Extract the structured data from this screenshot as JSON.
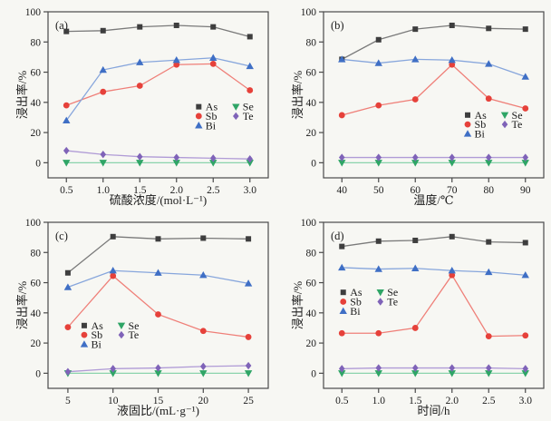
{
  "figure": {
    "background": "#f7f7f3",
    "frame_color": "#4a4a4a",
    "text_color": "#1b1b1b"
  },
  "chart_data": [
    {
      "panel": "(a)",
      "type": "line",
      "xlabel": "硫酸浓度/(mol·L⁻¹)",
      "ylabel": "浸出率/%",
      "x": [
        0.5,
        1.0,
        1.5,
        2.0,
        2.5,
        3.0
      ],
      "xtick_labels": [
        "0.5",
        "1.0",
        "1.5",
        "2.0",
        "2.5",
        "3.0"
      ],
      "xlim": [
        0.25,
        3.25
      ],
      "ylim": [
        -10,
        100
      ],
      "yticks": [
        0,
        20,
        40,
        60,
        80,
        100
      ],
      "grid": false,
      "legend_pos": {
        "fx": 0.67,
        "fy": 0.55
      },
      "series": [
        {
          "name": "As",
          "marker": "square",
          "marker_color": "#3e3e3e",
          "line_color": "#7a7a7a",
          "values": [
            87,
            87.5,
            90,
            91,
            90,
            83.5
          ]
        },
        {
          "name": "Sb",
          "marker": "circle",
          "marker_color": "#e6413a",
          "line_color": "#ef7f78",
          "values": [
            38,
            47,
            51,
            65,
            65.5,
            48
          ]
        },
        {
          "name": "Bi",
          "marker": "triangle-up",
          "marker_color": "#3f6fc5",
          "line_color": "#87a6dc",
          "values": [
            28,
            61.5,
            66.5,
            68,
            69.5,
            64
          ]
        },
        {
          "name": "Se",
          "marker": "triangle-down",
          "marker_color": "#2fa566",
          "line_color": "#8ad3ac",
          "values": [
            0,
            0,
            0,
            0,
            0,
            0
          ]
        },
        {
          "name": "Te",
          "marker": "diamond",
          "marker_color": "#7f63b8",
          "line_color": "#b09bd6",
          "values": [
            8,
            5.5,
            4,
            3.5,
            3,
            2.5
          ]
        }
      ]
    },
    {
      "panel": "(b)",
      "type": "line",
      "xlabel": "温度/℃",
      "ylabel": "浸出率/%",
      "x": [
        40,
        50,
        60,
        70,
        80,
        90
      ],
      "xtick_labels": [
        "40",
        "50",
        "60",
        "70",
        "80",
        "90"
      ],
      "xlim": [
        35,
        95
      ],
      "ylim": [
        -10,
        100
      ],
      "yticks": [
        0,
        20,
        40,
        60,
        80,
        100
      ],
      "grid": false,
      "legend_pos": {
        "fx": 0.64,
        "fy": 0.6
      },
      "series": [
        {
          "name": "As",
          "marker": "square",
          "marker_color": "#3e3e3e",
          "line_color": "#7a7a7a",
          "values": [
            68.5,
            81.5,
            88.5,
            91,
            89,
            88.5
          ]
        },
        {
          "name": "Sb",
          "marker": "circle",
          "marker_color": "#e6413a",
          "line_color": "#ef7f78",
          "values": [
            31.5,
            38,
            42,
            65,
            42.5,
            36
          ]
        },
        {
          "name": "Bi",
          "marker": "triangle-up",
          "marker_color": "#3f6fc5",
          "line_color": "#87a6dc",
          "values": [
            68.5,
            66,
            68.5,
            68,
            65.5,
            57
          ]
        },
        {
          "name": "Se",
          "marker": "triangle-down",
          "marker_color": "#2fa566",
          "line_color": "#8ad3ac",
          "values": [
            0,
            0,
            0,
            0,
            0,
            0
          ]
        },
        {
          "name": "Te",
          "marker": "diamond",
          "marker_color": "#7f63b8",
          "line_color": "#b09bd6",
          "values": [
            3.5,
            3.5,
            3.5,
            3.5,
            3.5,
            3.5
          ]
        }
      ]
    },
    {
      "panel": "(c)",
      "type": "line",
      "xlabel": "液固比/(mL·g⁻¹)",
      "ylabel": "浸出率/%",
      "x": [
        5,
        10,
        15,
        20,
        25
      ],
      "xtick_labels": [
        "5",
        "10",
        "15",
        "20",
        "25"
      ],
      "xlim": [
        2.8,
        27.2
      ],
      "ylim": [
        -10,
        100
      ],
      "yticks": [
        0,
        20,
        40,
        60,
        80,
        100
      ],
      "grid": false,
      "legend_pos": {
        "fx": 0.15,
        "fy": 0.6
      },
      "series": [
        {
          "name": "As",
          "marker": "square",
          "marker_color": "#3e3e3e",
          "line_color": "#7a7a7a",
          "values": [
            66.5,
            90.5,
            89,
            89.5,
            89
          ]
        },
        {
          "name": "Sb",
          "marker": "circle",
          "marker_color": "#e6413a",
          "line_color": "#ef7f78",
          "values": [
            30.5,
            64.5,
            39,
            28,
            24
          ]
        },
        {
          "name": "Bi",
          "marker": "triangle-up",
          "marker_color": "#3f6fc5",
          "line_color": "#87a6dc",
          "values": [
            57,
            68,
            66.5,
            65,
            59.5
          ]
        },
        {
          "name": "Se",
          "marker": "triangle-down",
          "marker_color": "#2fa566",
          "line_color": "#8ad3ac",
          "values": [
            0,
            0,
            0,
            0,
            0
          ]
        },
        {
          "name": "Te",
          "marker": "diamond",
          "marker_color": "#7f63b8",
          "line_color": "#b09bd6",
          "values": [
            1,
            3,
            3.5,
            4.5,
            5
          ]
        }
      ]
    },
    {
      "panel": "(d)",
      "type": "line",
      "xlabel": "时间/h",
      "ylabel": "浸出率/%",
      "x": [
        0.5,
        1.0,
        1.5,
        2.0,
        2.5,
        3.0
      ],
      "xtick_labels": [
        "0.5",
        "1.0",
        "1.5",
        "2.0",
        "2.5",
        "3.0"
      ],
      "xlim": [
        0.25,
        3.25
      ],
      "ylim": [
        -10,
        100
      ],
      "yticks": [
        0,
        20,
        40,
        60,
        80,
        100
      ],
      "grid": false,
      "legend_pos": {
        "fx": 0.075,
        "fy": 0.4
      },
      "series": [
        {
          "name": "As",
          "marker": "square",
          "marker_color": "#3e3e3e",
          "line_color": "#7a7a7a",
          "values": [
            84,
            87.5,
            88,
            90.5,
            87,
            86.5
          ]
        },
        {
          "name": "Sb",
          "marker": "circle",
          "marker_color": "#e6413a",
          "line_color": "#ef7f78",
          "values": [
            26.5,
            26.5,
            30,
            65,
            24.5,
            25
          ]
        },
        {
          "name": "Bi",
          "marker": "triangle-up",
          "marker_color": "#3f6fc5",
          "line_color": "#87a6dc",
          "values": [
            70,
            69,
            69.5,
            68,
            67,
            65
          ]
        },
        {
          "name": "Se",
          "marker": "triangle-down",
          "marker_color": "#2fa566",
          "line_color": "#8ad3ac",
          "values": [
            0,
            0,
            0,
            0,
            0,
            0
          ]
        },
        {
          "name": "Te",
          "marker": "diamond",
          "marker_color": "#7f63b8",
          "line_color": "#b09bd6",
          "values": [
            3,
            3.5,
            3.5,
            3.5,
            3.5,
            3
          ]
        }
      ]
    }
  ]
}
